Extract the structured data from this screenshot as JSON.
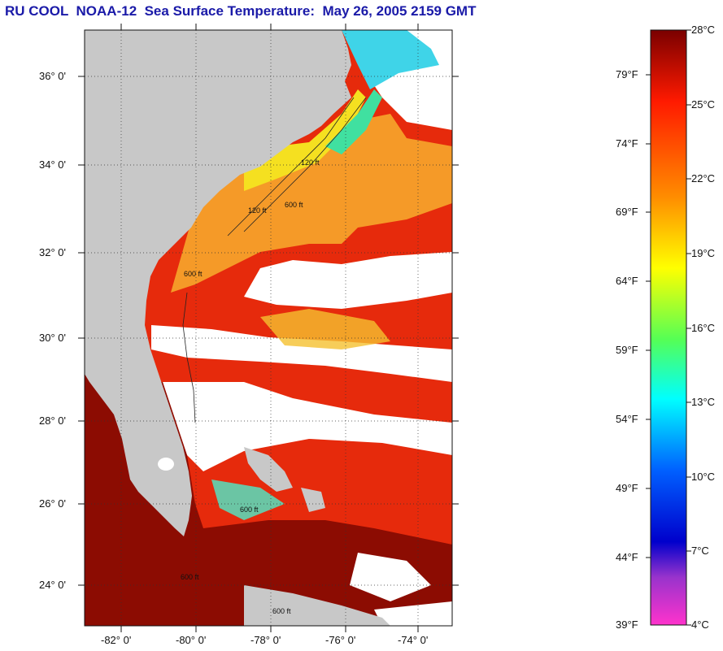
{
  "title": "RU COOL  NOAA-12  Sea Surface Temperature:  May 26, 2005 2159 GMT",
  "lat_labels": [
    "36° 0'",
    "34° 0'",
    "32° 0'",
    "30° 0'",
    "28° 0'",
    "26° 0'",
    "24° 0'"
  ],
  "lon_labels": [
    "-82° 0'",
    "-80° 0'",
    "-78° 0'",
    "-76° 0'",
    "-74° 0'"
  ],
  "isobath_labels": [
    "120 ft",
    "600 ft",
    "600 ft",
    "120 ft",
    "600 ft",
    "600 ft",
    "600 ft"
  ],
  "colorbar": {
    "fahrenheit_labels": [
      "79°F",
      "74°F",
      "69°F",
      "64°F",
      "59°F",
      "54°F",
      "49°F",
      "44°F",
      "39°F"
    ],
    "celsius_labels": [
      "28°C",
      "25°C",
      "22°C",
      "19°C",
      "16°C",
      "13°C",
      "10°C",
      "7°C",
      "4°C"
    ],
    "stops": [
      "#7a0000",
      "#ff1a00",
      "#ff8c00",
      "#ffff00",
      "#55ff55",
      "#00ffff",
      "#0060ff",
      "#0000cc",
      "#9933cc",
      "#ff33cc"
    ]
  },
  "colors": {
    "land": "#c8c8c8",
    "cloud": "#ffffff",
    "warm": "#e8200a",
    "deep_warm": "#8a0a00",
    "shelf": "#f5a020",
    "title": "#1a1aa8"
  }
}
